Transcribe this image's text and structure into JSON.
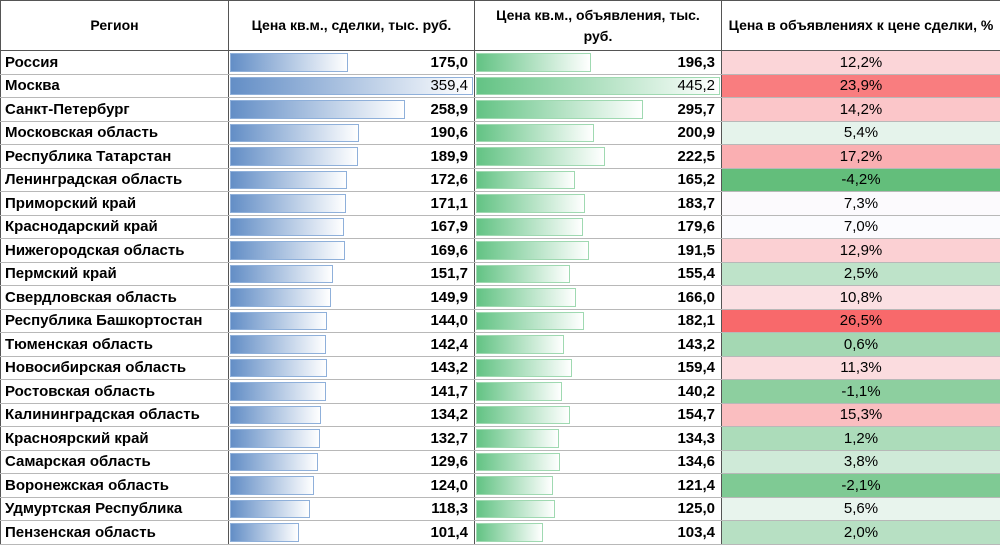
{
  "headers": [
    "Регион",
    "Цена кв.м., сделки, тыс. руб.",
    "Цена кв.м., объявления, тыс. руб.",
    "Цена в объявлениях к цене сделки, %"
  ],
  "rows": [
    [
      "Россия",
      "175,0",
      "196,3",
      "12,2%"
    ],
    [
      "Москва",
      "359,4",
      "445,2",
      "23,9%"
    ],
    [
      "Санкт-Петербург",
      "258,9",
      "295,7",
      "14,2%"
    ],
    [
      "Московская область",
      "190,6",
      "200,9",
      "5,4%"
    ],
    [
      "Республика Татарстан",
      "189,9",
      "222,5",
      "17,2%"
    ],
    [
      "Ленинградская область",
      "172,6",
      "165,2",
      "-4,2%"
    ],
    [
      "Приморский край",
      "171,1",
      "183,7",
      "7,3%"
    ],
    [
      "Краснодарский край",
      "167,9",
      "179,6",
      "7,0%"
    ],
    [
      "Нижегородская область",
      "169,6",
      "191,5",
      "12,9%"
    ],
    [
      "Пермский край",
      "151,7",
      "155,4",
      "2,5%"
    ],
    [
      "Свердловская область",
      "149,9",
      "166,0",
      "10,8%"
    ],
    [
      "Республика Башкортостан",
      "144,0",
      "182,1",
      "26,5%"
    ],
    [
      "Тюменская область",
      "142,4",
      "143,2",
      "0,6%"
    ],
    [
      "Новосибирская область",
      "143,2",
      "159,4",
      "11,3%"
    ],
    [
      "Ростовская область",
      "141,7",
      "140,2",
      "-1,1%"
    ],
    [
      "Калининградская область",
      "134,2",
      "154,7",
      "15,3%"
    ],
    [
      "Красноярский край",
      "132,7",
      "134,3",
      "1,2%"
    ],
    [
      "Самарская область",
      "129,6",
      "134,6",
      "3,8%"
    ],
    [
      "Воронежская область",
      "124,0",
      "121,4",
      "-2,1%"
    ],
    [
      "Удмуртская Республика",
      "118,3",
      "125,0",
      "5,6%"
    ],
    [
      "Пензенская область",
      "101,4",
      "103,4",
      "2,0%"
    ]
  ],
  "colors": {
    "low": "#63be7b",
    "mid": "#fcfcff",
    "high": "#f8696b"
  }
}
